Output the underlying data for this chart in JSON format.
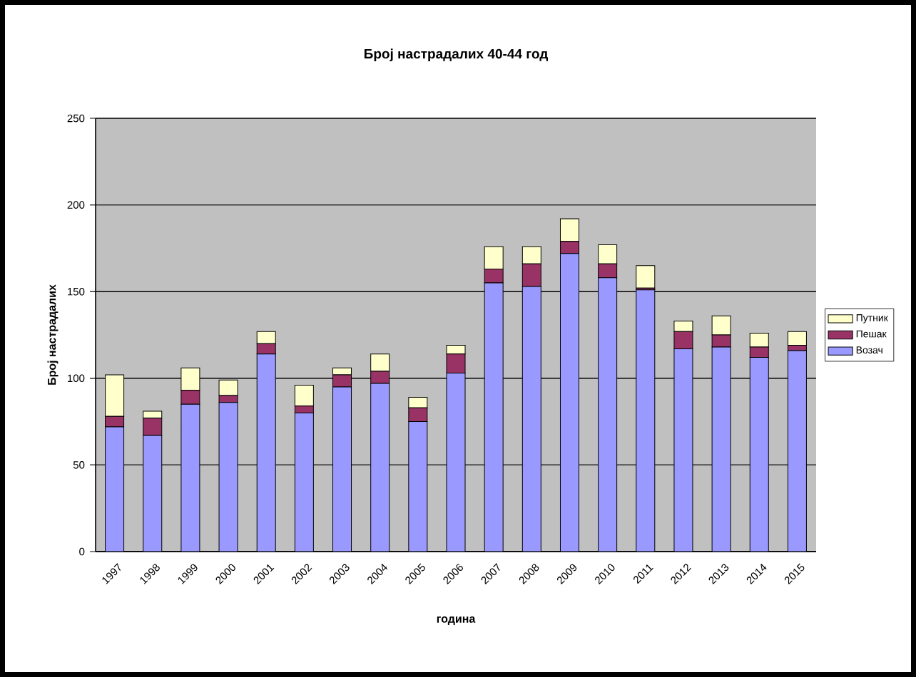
{
  "chart_data": {
    "type": "bar",
    "stacked": true,
    "title": "Број настрадалих 40-44 год",
    "xlabel": "година",
    "ylabel": "Број настрадалих",
    "categories": [
      "1997",
      "1998",
      "1999",
      "2000",
      "2001",
      "2002",
      "2003",
      "2004",
      "2005",
      "2006",
      "2007",
      "2008",
      "2009",
      "2010",
      "2011",
      "2012",
      "2013",
      "2014",
      "2015"
    ],
    "series": [
      {
        "name": "Возач",
        "color": "#9999ff",
        "values": [
          72,
          67,
          85,
          86,
          114,
          80,
          95,
          97,
          75,
          103,
          155,
          153,
          172,
          158,
          151,
          117,
          118,
          112,
          116
        ]
      },
      {
        "name": "Пешак",
        "color": "#993366",
        "values": [
          6,
          10,
          8,
          4,
          6,
          4,
          7,
          7,
          8,
          11,
          8,
          13,
          7,
          8,
          1,
          10,
          7,
          6,
          3
        ]
      },
      {
        "name": "Путник",
        "color": "#ffffcc",
        "values": [
          24,
          4,
          13,
          9,
          7,
          12,
          4,
          10,
          6,
          5,
          13,
          10,
          13,
          11,
          13,
          6,
          11,
          8,
          8
        ]
      }
    ],
    "ylim": [
      0,
      250
    ],
    "yticks": [
      0,
      50,
      100,
      150,
      200,
      250
    ],
    "grid": "y",
    "legend": "right"
  }
}
